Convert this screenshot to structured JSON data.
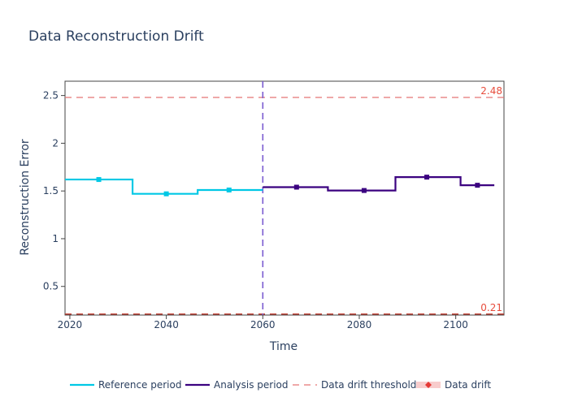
{
  "colors": {
    "reference": "#00c8e5",
    "analysis": "#3b0280",
    "threshold": "#e57373",
    "threshold_label": "#e74c3c",
    "drift_marker": "#e53935",
    "drift_band": "#f8cccc",
    "divider": "#7a5bd0",
    "text": "#2a3f5f"
  },
  "legend": [
    {
      "key": "reference",
      "label": "Reference period",
      "icon": "solid-line"
    },
    {
      "key": "analysis",
      "label": "Analysis period",
      "icon": "solid-line"
    },
    {
      "key": "threshold",
      "label": "Data drift threshold",
      "icon": "dashed-line"
    },
    {
      "key": "drift",
      "label": "Data drift",
      "icon": "diamond-marker"
    }
  ],
  "chart_data": {
    "type": "line",
    "title": "Data Reconstruction Drift",
    "xlabel": "Time",
    "ylabel": "Reconstruction Error",
    "xlim": [
      2019,
      2110
    ],
    "ylim": [
      0.2,
      2.65
    ],
    "x_ticks": [
      2020,
      2040,
      2060,
      2080,
      2100
    ],
    "y_ticks": [
      0.5,
      1,
      1.5,
      2,
      2.5
    ],
    "y_tick_labels": [
      "0.5",
      "1",
      "1.5",
      "2",
      "2.5"
    ],
    "x_tick_labels": [
      "2020",
      "2040",
      "2060",
      "2080",
      "2100"
    ],
    "period_divider_x": 2060,
    "thresholds": {
      "upper": 2.48,
      "lower": 0.21,
      "upper_label": "2.48",
      "lower_label": "0.21"
    },
    "series": [
      {
        "key": "reference",
        "name": "Reference period",
        "steps": [
          {
            "start": 2019,
            "end": 2033,
            "mid": 2026,
            "value": 1.62
          },
          {
            "start": 2033,
            "end": 2046.5,
            "mid": 2040,
            "value": 1.47
          },
          {
            "start": 2046.5,
            "end": 2060,
            "mid": 2053,
            "value": 1.51
          }
        ]
      },
      {
        "key": "analysis",
        "name": "Analysis period",
        "steps": [
          {
            "start": 2060,
            "end": 2073.5,
            "mid": 2067,
            "value": 1.54
          },
          {
            "start": 2073.5,
            "end": 2087.5,
            "mid": 2081,
            "value": 1.505
          },
          {
            "start": 2087.5,
            "end": 2101,
            "mid": 2094,
            "value": 1.645
          },
          {
            "start": 2101,
            "end": 2108,
            "mid": 2104.5,
            "value": 1.56
          }
        ]
      }
    ]
  }
}
